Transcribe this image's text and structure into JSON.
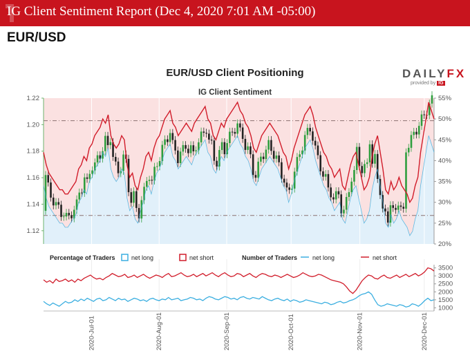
{
  "header": {
    "title": "IG Client Sentiment Report (Dec 4, 2020 7:01 AM -05:00)",
    "pair": "EUR/USD"
  },
  "logo": {
    "brand_a": "DAILY",
    "brand_b": "FX",
    "provided_by": "provided by",
    "ig": "IG"
  },
  "colors": {
    "net_long": "#3aaee0",
    "net_short": "#d11c2a",
    "price_up": "#2e9e3e",
    "price_down": "#222222",
    "banner": "#c8141e"
  },
  "chart_data": [
    {
      "type": "line",
      "title": "EUR/USD Client Positioning",
      "subtitle": "IG Client Sentiment",
      "left_axis": {
        "ticks": [
          "1.12",
          "1.14",
          "1.16",
          "1.18",
          "1.20",
          "1.22"
        ],
        "ylim": [
          1.11,
          1.22
        ]
      },
      "right_axis": {
        "ticks": [
          "20%",
          "25%",
          "30%",
          "35%",
          "40%",
          "45%",
          "50%",
          "55%"
        ],
        "ylim": [
          20,
          55
        ]
      },
      "x_ticks": [
        "2020-Jul-01",
        "2020-Aug-01",
        "2020-Sep-01",
        "2020-Oct-01",
        "2020-Nov-01",
        "2020-Dec-01"
      ],
      "reference_lines": [
        1.203,
        1.1315
      ],
      "series": [
        {
          "name": "net long",
          "values": [
            34,
            31,
            29,
            28,
            27,
            26,
            25,
            25,
            24,
            24,
            25,
            26,
            27,
            30,
            31,
            33,
            32,
            35,
            36,
            38,
            39,
            40,
            42,
            41,
            43,
            38,
            36,
            35,
            36,
            38,
            37,
            31,
            28,
            29,
            26,
            25,
            28,
            30,
            33,
            34,
            32,
            35,
            37,
            38,
            40,
            42,
            43,
            44,
            41,
            40,
            38,
            39,
            40,
            41,
            40,
            39,
            41,
            42,
            43,
            44,
            45,
            42,
            41,
            38,
            37,
            39,
            41,
            40,
            42,
            43,
            44,
            45,
            46,
            44,
            43,
            41,
            40,
            38,
            35,
            34,
            36,
            38,
            39,
            40,
            41,
            40,
            39,
            38,
            36,
            34,
            33,
            30,
            32,
            35,
            37,
            39,
            41,
            43,
            44,
            45,
            43,
            40,
            38,
            36,
            34,
            33,
            31,
            30,
            28,
            29,
            30,
            26,
            25,
            28,
            31,
            33,
            34,
            31,
            28,
            25,
            26,
            28,
            33,
            36,
            38,
            34,
            30,
            25,
            24,
            27,
            25,
            26,
            28,
            26,
            25,
            24,
            22,
            23,
            26,
            28,
            34,
            38,
            42,
            46,
            44,
            42
          ]
        },
        {
          "name": "net short"
        }
      ]
    },
    {
      "type": "line",
      "title": "Number of Traders",
      "y_ticks": [
        "1000",
        "1500",
        "2000",
        "2500",
        "3000",
        "3500"
      ],
      "ylim": [
        800,
        3700
      ],
      "series": [
        {
          "name": "net long",
          "values": [
            1400,
            1250,
            1150,
            1300,
            1200,
            1100,
            1250,
            1400,
            1300,
            1350,
            1500,
            1400,
            1550,
            1450,
            1600,
            1500,
            1400,
            1550,
            1600,
            1450,
            1500,
            1650,
            1550,
            1450,
            1600,
            1500,
            1550,
            1400,
            1500,
            1600,
            1550,
            1450,
            1500,
            1400,
            1550,
            1600,
            1500,
            1450,
            1550,
            1500,
            1650,
            1500,
            1550,
            1600,
            1450,
            1500,
            1550,
            1650,
            1600,
            1500,
            1550,
            1450,
            1600,
            1700,
            1650,
            1550,
            1500,
            1600,
            1700,
            1650,
            1550,
            1600,
            1500,
            1650,
            1700,
            1600,
            1550,
            1650,
            1600,
            1550,
            1700,
            1600,
            1500,
            1450,
            1550,
            1600,
            1500,
            1450,
            1550,
            1400,
            1500,
            1450,
            1350,
            1400,
            1500,
            1450,
            1400,
            1350,
            1300,
            1250,
            1350,
            1300,
            1200,
            1250,
            1350,
            1400,
            1300,
            1350,
            1450,
            1500,
            1600,
            1750,
            1850,
            1900,
            2000,
            1850,
            1500,
            1200,
            1100,
            1150,
            1250,
            1200,
            1150,
            1100,
            1200,
            1150,
            1050,
            1100,
            1250,
            1200,
            1100,
            1250,
            1450,
            1600,
            1450,
            1500
          ]
        },
        {
          "name": "net short",
          "values": [
            2750,
            2600,
            2700,
            2550,
            2800,
            2650,
            2700,
            2800,
            2650,
            2750,
            2600,
            2800,
            2700,
            2850,
            2950,
            3050,
            2900,
            2800,
            2850,
            2750,
            2900,
            3000,
            3150,
            3050,
            2950,
            3000,
            3100,
            2900,
            2950,
            3050,
            2900,
            3000,
            3100,
            2950,
            2850,
            2950,
            3050,
            3000,
            2900,
            3050,
            3150,
            2950,
            3000,
            3100,
            3200,
            3050,
            2950,
            3000,
            3100,
            2950,
            3050,
            3150,
            3000,
            3100,
            3200,
            3050,
            2950,
            3100,
            3200,
            3050,
            2950,
            3000,
            3150,
            3100,
            2950,
            3050,
            3150,
            3000,
            2900,
            3050,
            3150,
            3100,
            3000,
            2950,
            3050,
            3000,
            2900,
            3000,
            3100,
            3000,
            2900,
            2950,
            3050,
            3200,
            3100,
            3000,
            2950,
            3000,
            3100,
            3050,
            2950,
            2850,
            2750,
            2700,
            2650,
            2600,
            2500,
            2300,
            2050,
            1900,
            2100,
            2400,
            2700,
            2900,
            3050,
            3000,
            2850,
            2800,
            2950,
            3050,
            2900,
            2850,
            2950,
            3050,
            2900,
            3000,
            3100,
            2950,
            3050,
            3150,
            3000,
            3100,
            3250,
            3500,
            3450,
            3300
          ]
        }
      ]
    }
  ],
  "legend": {
    "pct_label": "Percentage of Traders",
    "num_label": "Number of Traders",
    "net_long": "net long",
    "net_short": "net short"
  }
}
